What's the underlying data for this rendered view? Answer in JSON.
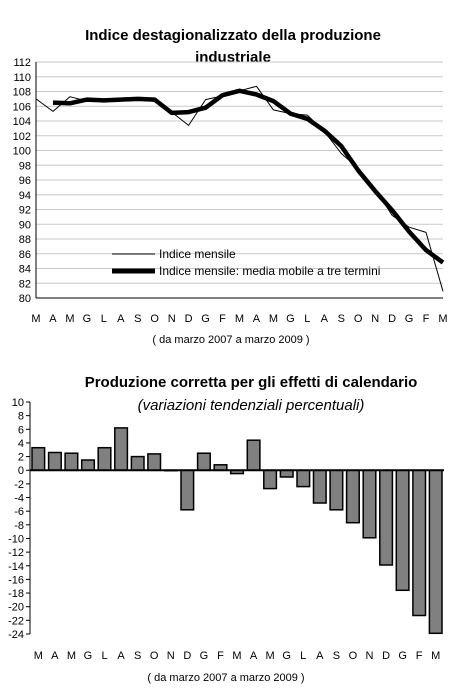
{
  "chart_data": [
    {
      "type": "line",
      "title": "Indice destagionalizzato della produzione",
      "title_line2": "industriale",
      "x_labels": [
        "M",
        "A",
        "M",
        "G",
        "L",
        "A",
        "S",
        "O",
        "N",
        "D",
        "G",
        "F",
        "M",
        "A",
        "M",
        "G",
        "L",
        "A",
        "S",
        "O",
        "N",
        "D",
        "G",
        "F",
        "M"
      ],
      "xnote": "( da marzo 2007 a marzo 2009 )",
      "ylim": [
        80,
        112
      ],
      "y_ticks": [
        "80",
        "82",
        "84",
        "86",
        "88",
        "90",
        "92",
        "94",
        "96",
        "98",
        "100",
        "102",
        "104",
        "106",
        "108",
        "110",
        "112"
      ],
      "grid": "horizontal",
      "legend_position": "bottom-center",
      "series": [
        {
          "name": "Indice mensile",
          "values": [
            107.0,
            105.3,
            107.3,
            106.7,
            106.8,
            107.0,
            107.2,
            106.6,
            105.2,
            103.4,
            106.9,
            107.4,
            108.1,
            108.7,
            105.5,
            105.0,
            104.8,
            102.6,
            99.6,
            97.6,
            94.8,
            91.2,
            89.6,
            88.9,
            80.9
          ]
        },
        {
          "name": "Indice mensile: media mobile a tre termini",
          "values": [
            null,
            106.5,
            106.4,
            106.9,
            106.8,
            106.9,
            107.0,
            106.9,
            105.1,
            105.2,
            105.8,
            107.5,
            108.1,
            107.6,
            106.7,
            105.0,
            104.3,
            102.7,
            100.6,
            97.3,
            94.5,
            91.9,
            89.0,
            86.5,
            84.8
          ]
        }
      ]
    },
    {
      "type": "bar",
      "title": "Produzione corretta per gli effetti di calendario",
      "subtitle": "(variazioni tendenziali percentuali)",
      "categories": [
        "M",
        "A",
        "M",
        "G",
        "L",
        "A",
        "S",
        "O",
        "N",
        "D",
        "G",
        "F",
        "M",
        "A",
        "M",
        "G",
        "L",
        "A",
        "S",
        "O",
        "N",
        "D",
        "G",
        "F",
        "M"
      ],
      "values": [
        3.3,
        2.6,
        2.5,
        1.5,
        3.3,
        6.2,
        2.0,
        2.4,
        0.0,
        -5.8,
        2.5,
        0.8,
        -0.5,
        4.4,
        -2.7,
        -1.0,
        -2.4,
        -4.8,
        -5.8,
        -7.7,
        -9.9,
        -13.9,
        -17.6,
        -21.3,
        -23.9
      ],
      "xnote": "( da marzo 2007 a marzo 2009 )",
      "ylim": [
        -24,
        10
      ],
      "y_ticks": [
        "-24",
        "-22",
        "-20",
        "-18",
        "-16",
        "-14",
        "-12",
        "-10",
        "-8",
        "-6",
        "-4",
        "-2",
        "0",
        "2",
        "4",
        "6",
        "8",
        "10"
      ],
      "grid": "none",
      "colors": {
        "bar_fill": "#808080",
        "bar_stroke": "#000000"
      }
    }
  ]
}
